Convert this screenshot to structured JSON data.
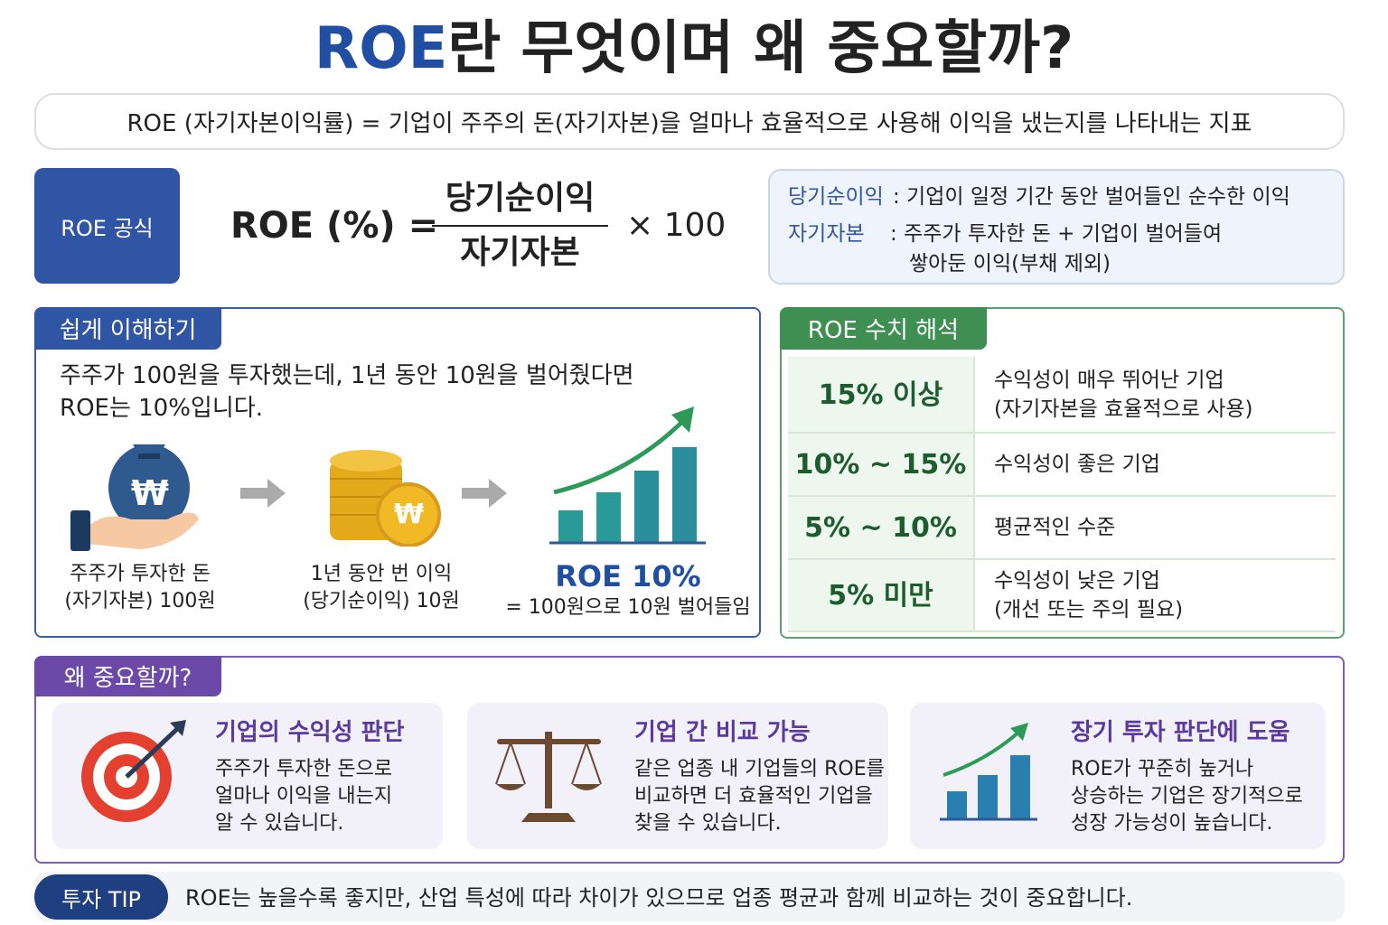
{
  "title": {
    "highlight": "ROE",
    "rest": "란 무엇이며 왜 중요할까?"
  },
  "definition": "ROE (자기자본이익률) = 기업이 주주의 돈(자기자본)을 얼마나 효율적으로 사용해 이익을 냈는지를 나타내는 지표",
  "formula": {
    "badge": "ROE 공식",
    "lhs": "ROE (%) =",
    "numerator": "당기순이익",
    "denominator": "자기자본",
    "multiplier": "× 100"
  },
  "glossary": [
    {
      "term": "당기순이익",
      "desc": [
        ": 기업이 일정 기간 동안 벌어들인 순수한 이익"
      ]
    },
    {
      "term": "자기자본",
      "desc": [
        ": 주주가 투자한 돈 + 기업이 벌어들여",
        "쌓아둔 이익(부채 제외)"
      ]
    }
  ],
  "easy": {
    "title": "쉽게 이해하기",
    "intro": [
      "주주가 100원을 투자했는데, 1년 동안 10원을 벌어줬다면",
      "ROE는 10%입니다."
    ],
    "currency_symbol": "₩",
    "steps": [
      {
        "label": [
          "주주가 투자한 돈",
          "(자기자본) 100원"
        ]
      },
      {
        "label": [
          "1년 동안 번 이익",
          "(당기순이익) 10원"
        ]
      },
      {
        "headline": "ROE 10%",
        "label": [
          "= 100원으로 10원 벌어들임"
        ]
      }
    ]
  },
  "interpretation": {
    "title": "ROE 수치 해석",
    "rows": [
      {
        "range": "15% 이상",
        "desc": [
          "수익성이 매우 뛰어난 기업",
          "(자기자본을 효율적으로 사용)"
        ]
      },
      {
        "range": "10% ~ 15%",
        "desc": [
          "수익성이 좋은 기업"
        ]
      },
      {
        "range": "5% ~ 10%",
        "desc": [
          "평균적인 수준"
        ]
      },
      {
        "range": "5% 미만",
        "desc": [
          "수익성이 낮은 기업",
          "(개선 또는 주의 필요)"
        ]
      }
    ]
  },
  "importance": {
    "title": "왜 중요할까?",
    "cards": [
      {
        "title": "기업의 수익성 판단",
        "body": [
          "주주가 투자한 돈으로",
          "얼마나 이익을 내는지",
          "알 수 있습니다."
        ]
      },
      {
        "title": "기업 간 비교 가능",
        "body": [
          "같은 업종 내 기업들의 ROE를",
          "비교하면 더 효율적인 기업을",
          "찾을 수 있습니다."
        ]
      },
      {
        "title": "장기 투자 판단에 도움",
        "body": [
          "ROE가 꾸준히 높거나",
          "상승하는 기업은 장기적으로",
          "성장 가능성이 높습니다."
        ]
      }
    ]
  },
  "tip": {
    "badge": "투자 TIP",
    "text": "ROE는 높을수록 좋지만, 산업 특성에 따라 차이가 있으므로 업종 평균과 함께 비교하는 것이 중요합니다."
  }
}
